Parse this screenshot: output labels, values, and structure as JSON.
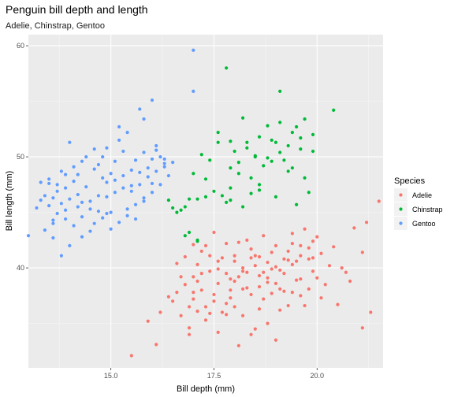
{
  "chart_data": {
    "type": "scatter",
    "title": "Penguin bill depth and length",
    "subtitle": "Adelie, Chinstrap, Gentoo",
    "xlabel": "Bill depth (mm)",
    "ylabel": "Bill length (mm)",
    "xlim": [
      13.0,
      21.6
    ],
    "ylim": [
      31.0,
      61.0
    ],
    "xticks": [
      15.0,
      17.5,
      20.0
    ],
    "xtick_labels": [
      "15.0",
      "17.5",
      "20.0"
    ],
    "yticks": [
      40,
      50,
      60
    ],
    "ytick_labels": [
      "40",
      "50",
      "60"
    ],
    "grid": true,
    "legend": {
      "title": "Species",
      "position": "right"
    },
    "series": [
      {
        "name": "Adelie",
        "color": "#F8766D",
        "points": [
          [
            15.5,
            32.1
          ],
          [
            16.1,
            33.1
          ],
          [
            16.9,
            34.6
          ],
          [
            16.2,
            36.0
          ],
          [
            15.9,
            35.2
          ],
          [
            16.4,
            37.4
          ],
          [
            16.6,
            37.8
          ],
          [
            16.9,
            36.5
          ],
          [
            17.0,
            37.2
          ],
          [
            17.1,
            38.8
          ],
          [
            17.2,
            39.5
          ],
          [
            17.3,
            36.5
          ],
          [
            17.4,
            35.9
          ],
          [
            17.5,
            37.6
          ],
          [
            17.6,
            38.6
          ],
          [
            17.7,
            36.0
          ],
          [
            17.8,
            36.8
          ],
          [
            17.9,
            39.0
          ],
          [
            18.0,
            40.6
          ],
          [
            18.1,
            39.2
          ],
          [
            18.2,
            39.7
          ],
          [
            18.3,
            38.2
          ],
          [
            18.4,
            40.9
          ],
          [
            18.5,
            41.1
          ],
          [
            18.6,
            38.3
          ],
          [
            18.7,
            39.6
          ],
          [
            18.8,
            40.5
          ],
          [
            18.9,
            37.7
          ],
          [
            19.0,
            42.0
          ],
          [
            19.1,
            39.8
          ],
          [
            19.2,
            40.8
          ],
          [
            19.3,
            41.5
          ],
          [
            19.4,
            42.2
          ],
          [
            19.5,
            38.9
          ],
          [
            19.6,
            41.1
          ],
          [
            19.7,
            43.5
          ],
          [
            19.8,
            41.8
          ],
          [
            19.9,
            39.7
          ],
          [
            20.0,
            42.8
          ],
          [
            20.1,
            41.3
          ],
          [
            20.3,
            40.2
          ],
          [
            20.5,
            36.7
          ],
          [
            20.6,
            40.0
          ],
          [
            20.8,
            38.8
          ],
          [
            21.1,
            41.4
          ],
          [
            21.2,
            44.1
          ],
          [
            21.5,
            46.0
          ],
          [
            21.1,
            34.6
          ],
          [
            21.3,
            36.0
          ],
          [
            20.7,
            39.6
          ],
          [
            17.0,
            39.2
          ],
          [
            17.1,
            40.3
          ],
          [
            17.3,
            42.0
          ],
          [
            17.4,
            39.7
          ],
          [
            17.6,
            40.6
          ],
          [
            17.8,
            39.5
          ],
          [
            17.9,
            37.3
          ],
          [
            18.0,
            41.1
          ],
          [
            18.1,
            42.3
          ],
          [
            18.2,
            38.1
          ],
          [
            18.3,
            42.5
          ],
          [
            18.4,
            37.6
          ],
          [
            18.5,
            40.2
          ],
          [
            18.6,
            41.0
          ],
          [
            18.7,
            37.2
          ],
          [
            18.8,
            39.1
          ],
          [
            18.9,
            41.4
          ],
          [
            19.0,
            38.6
          ],
          [
            19.1,
            36.2
          ],
          [
            19.2,
            37.9
          ],
          [
            19.3,
            40.7
          ],
          [
            19.4,
            37.8
          ],
          [
            19.5,
            40.6
          ],
          [
            19.6,
            39.0
          ],
          [
            19.7,
            36.6
          ],
          [
            19.8,
            38.1
          ],
          [
            19.9,
            42.4
          ],
          [
            17.2,
            41.5
          ],
          [
            17.5,
            43.2
          ],
          [
            17.8,
            42.2
          ],
          [
            18.0,
            36.5
          ],
          [
            18.2,
            35.7
          ],
          [
            18.4,
            34.0
          ],
          [
            18.6,
            36.3
          ],
          [
            18.8,
            35.0
          ],
          [
            19.0,
            33.5
          ],
          [
            18.5,
            34.5
          ],
          [
            18.1,
            33.0
          ],
          [
            17.9,
            38.0
          ],
          [
            17.6,
            39.9
          ],
          [
            17.4,
            41.1
          ],
          [
            17.2,
            38.0
          ],
          [
            17.0,
            37.8
          ],
          [
            16.8,
            38.5
          ],
          [
            16.7,
            39.2
          ],
          [
            16.6,
            40.4
          ],
          [
            16.5,
            37.0
          ],
          [
            16.8,
            41.0
          ],
          [
            17.0,
            42.1
          ],
          [
            17.5,
            37.0
          ],
          [
            17.7,
            40.9
          ],
          [
            18.3,
            39.6
          ],
          [
            18.7,
            42.9
          ],
          [
            18.9,
            39.9
          ],
          [
            19.1,
            38.1
          ],
          [
            19.3,
            36.6
          ],
          [
            19.4,
            43.1
          ],
          [
            19.6,
            37.5
          ],
          [
            19.9,
            40.9
          ],
          [
            20.2,
            38.5
          ],
          [
            17.3,
            35.3
          ],
          [
            17.1,
            36.1
          ],
          [
            16.9,
            34.0
          ],
          [
            16.7,
            35.7
          ],
          [
            17.6,
            34.2
          ],
          [
            17.8,
            35.8
          ],
          [
            18.0,
            38.8
          ],
          [
            18.2,
            40.0
          ],
          [
            18.4,
            41.7
          ],
          [
            18.6,
            39.3
          ],
          [
            18.8,
            38.7
          ],
          [
            19.0,
            40.1
          ],
          [
            19.2,
            39.5
          ],
          [
            19.4,
            40.3
          ],
          [
            19.6,
            42.0
          ],
          [
            19.8,
            40.8
          ],
          [
            20.0,
            39.1
          ],
          [
            20.4,
            41.9
          ],
          [
            20.9,
            43.6
          ],
          [
            20.1,
            37.3
          ]
        ]
      },
      {
        "name": "Chinstrap",
        "color": "#00BA38",
        "points": [
          [
            17.8,
            58.0
          ],
          [
            19.1,
            55.9
          ],
          [
            20.4,
            54.2
          ],
          [
            19.9,
            52.0
          ],
          [
            19.7,
            53.4
          ],
          [
            19.0,
            51.3
          ],
          [
            19.5,
            52.7
          ],
          [
            18.8,
            52.8
          ],
          [
            18.2,
            53.5
          ],
          [
            18.6,
            51.8
          ],
          [
            17.9,
            51.4
          ],
          [
            18.0,
            50.5
          ],
          [
            18.3,
            50.8
          ],
          [
            18.5,
            50.1
          ],
          [
            18.9,
            49.6
          ],
          [
            19.1,
            50.4
          ],
          [
            19.3,
            51.0
          ],
          [
            19.6,
            50.7
          ],
          [
            19.4,
            49.0
          ],
          [
            19.2,
            49.7
          ],
          [
            18.7,
            49.2
          ],
          [
            18.4,
            48.1
          ],
          [
            18.1,
            49.5
          ],
          [
            17.6,
            51.3
          ],
          [
            17.4,
            49.7
          ],
          [
            17.2,
            50.2
          ],
          [
            17.9,
            47.2
          ],
          [
            17.0,
            48.5
          ],
          [
            17.1,
            46.2
          ],
          [
            17.3,
            46.4
          ],
          [
            17.5,
            46.9
          ],
          [
            17.8,
            45.9
          ],
          [
            17.7,
            46.5
          ],
          [
            17.9,
            46.1
          ],
          [
            18.2,
            45.5
          ],
          [
            18.4,
            46.7
          ],
          [
            18.6,
            47.5
          ],
          [
            19.0,
            46.4
          ],
          [
            19.5,
            45.7
          ],
          [
            19.8,
            46.8
          ],
          [
            16.7,
            45.2
          ],
          [
            16.8,
            45.5
          ],
          [
            16.9,
            46.2
          ],
          [
            17.1,
            42.4
          ],
          [
            17.1,
            42.5
          ],
          [
            16.8,
            42.9
          ],
          [
            16.6,
            45.0
          ],
          [
            16.5,
            45.4
          ],
          [
            16.4,
            46.1
          ],
          [
            16.9,
            43.2
          ],
          [
            19.9,
            50.5
          ],
          [
            18.9,
            51.5
          ],
          [
            18.3,
            51.3
          ],
          [
            17.6,
            52.2
          ],
          [
            17.9,
            49.0
          ],
          [
            18.6,
            47.0
          ],
          [
            19.3,
            48.7
          ],
          [
            19.7,
            48.1
          ],
          [
            19.6,
            51.7
          ],
          [
            18.8,
            49.9
          ],
          [
            17.3,
            48.0
          ],
          [
            18.1,
            48.5
          ],
          [
            18.5,
            50.0
          ],
          [
            19.4,
            52.2
          ],
          [
            19.1,
            53.1
          ]
        ]
      },
      {
        "name": "Gentoo",
        "color": "#619CFF",
        "points": [
          [
            17.0,
            59.6
          ],
          [
            17.0,
            55.9
          ],
          [
            16.0,
            55.1
          ],
          [
            15.7,
            54.3
          ],
          [
            15.8,
            53.4
          ],
          [
            15.4,
            52.2
          ],
          [
            15.2,
            51.5
          ],
          [
            14.9,
            50.8
          ],
          [
            14.6,
            50.7
          ],
          [
            14.3,
            49.6
          ],
          [
            14.0,
            51.3
          ],
          [
            14.1,
            49.1
          ],
          [
            13.8,
            48.7
          ],
          [
            13.7,
            47.5
          ],
          [
            13.5,
            47.6
          ],
          [
            13.3,
            46.1
          ],
          [
            13.2,
            45.4
          ],
          [
            13.0,
            42.9
          ],
          [
            13.4,
            43.4
          ],
          [
            13.6,
            44.3
          ],
          [
            13.7,
            44.9
          ],
          [
            13.9,
            45.2
          ],
          [
            14.2,
            45.5
          ],
          [
            14.5,
            45.3
          ],
          [
            14.7,
            45.1
          ],
          [
            14.9,
            46.4
          ],
          [
            15.1,
            46.8
          ],
          [
            15.3,
            47.2
          ],
          [
            15.5,
            46.9
          ],
          [
            15.7,
            47.5
          ],
          [
            15.9,
            48.2
          ],
          [
            16.1,
            48.7
          ],
          [
            16.3,
            49.1
          ],
          [
            16.5,
            49.5
          ],
          [
            16.2,
            50.0
          ],
          [
            16.0,
            49.8
          ],
          [
            15.8,
            50.4
          ],
          [
            15.6,
            49.7
          ],
          [
            15.0,
            48.5
          ],
          [
            14.8,
            48.1
          ],
          [
            14.4,
            47.3
          ],
          [
            14.2,
            46.6
          ],
          [
            14.0,
            46.2
          ],
          [
            13.8,
            45.8
          ],
          [
            13.6,
            46.3
          ],
          [
            13.5,
            45.6
          ],
          [
            13.9,
            44.4
          ],
          [
            14.1,
            43.8
          ],
          [
            14.3,
            42.8
          ],
          [
            14.5,
            43.3
          ],
          [
            14.6,
            44.0
          ],
          [
            14.8,
            44.5
          ],
          [
            15.0,
            45.0
          ],
          [
            15.2,
            44.1
          ],
          [
            15.4,
            44.7
          ],
          [
            15.6,
            45.7
          ],
          [
            15.8,
            46.3
          ],
          [
            16.0,
            46.8
          ],
          [
            16.2,
            47.5
          ],
          [
            16.4,
            48.3
          ],
          [
            14.7,
            49.3
          ],
          [
            14.9,
            47.7
          ],
          [
            15.1,
            49.6
          ],
          [
            15.3,
            50.5
          ],
          [
            15.5,
            48.8
          ],
          [
            15.9,
            49.0
          ],
          [
            16.1,
            51.0
          ],
          [
            16.3,
            49.4
          ],
          [
            14.4,
            50.0
          ],
          [
            14.2,
            48.4
          ],
          [
            13.9,
            47.2
          ],
          [
            13.7,
            46.9
          ],
          [
            13.5,
            48.0
          ],
          [
            13.3,
            47.7
          ],
          [
            13.8,
            41.1
          ],
          [
            14.0,
            42.0
          ],
          [
            13.6,
            42.7
          ],
          [
            14.3,
            45.9
          ],
          [
            14.5,
            46.0
          ],
          [
            14.7,
            46.5
          ],
          [
            15.1,
            47.9
          ],
          [
            15.3,
            48.3
          ],
          [
            15.5,
            47.4
          ],
          [
            15.7,
            48.6
          ],
          [
            16.1,
            50.6
          ],
          [
            16.3,
            49.8
          ],
          [
            15.2,
            52.7
          ],
          [
            14.8,
            50.0
          ],
          [
            14.6,
            48.9
          ],
          [
            14.1,
            47.8
          ],
          [
            13.9,
            48.4
          ],
          [
            13.6,
            44.0
          ],
          [
            13.4,
            46.5
          ],
          [
            14.3,
            44.6
          ],
          [
            14.9,
            44.9
          ],
          [
            15.0,
            43.5
          ],
          [
            15.4,
            45.3
          ],
          [
            15.6,
            44.4
          ],
          [
            15.8,
            46.0
          ],
          [
            16.0,
            47.6
          ]
        ]
      }
    ]
  }
}
